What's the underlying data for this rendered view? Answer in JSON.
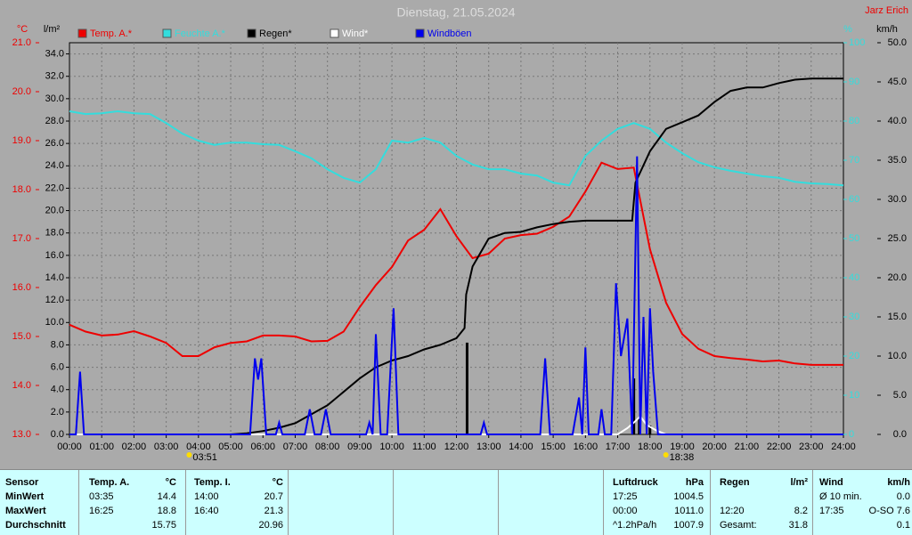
{
  "chart_data": {
    "type": "line",
    "title": "Dienstag, 21.05.2024",
    "author": "Jarz Erich",
    "xlim": [
      0,
      24
    ],
    "xticks": [
      {
        "value": 0,
        "label": "00:00"
      },
      {
        "value": 1,
        "label": "01:00"
      },
      {
        "value": 2,
        "label": "02:00"
      },
      {
        "value": 3,
        "label": "03:00"
      },
      {
        "value": 4,
        "label": "04:00"
      },
      {
        "value": 5,
        "label": "05:00"
      },
      {
        "value": 6,
        "label": "06:00"
      },
      {
        "value": 7,
        "label": "07:00"
      },
      {
        "value": 8,
        "label": "08:00"
      },
      {
        "value": 9,
        "label": "09:00"
      },
      {
        "value": 10,
        "label": "10:00"
      },
      {
        "value": 11,
        "label": "11:00"
      },
      {
        "value": 12,
        "label": "12:00"
      },
      {
        "value": 13,
        "label": "13:00"
      },
      {
        "value": 14,
        "label": "14:00"
      },
      {
        "value": 15,
        "label": "15:00"
      },
      {
        "value": 16,
        "label": "16:00"
      },
      {
        "value": 17,
        "label": "17:00"
      },
      {
        "value": 18,
        "label": "18:00"
      },
      {
        "value": 19,
        "label": "19:00"
      },
      {
        "value": 20,
        "label": "20:00"
      },
      {
        "value": 21,
        "label": "21:00"
      },
      {
        "value": 22,
        "label": "22:00"
      },
      {
        "value": 23,
        "label": "23:00"
      },
      {
        "value": 24,
        "label": "24:00"
      }
    ],
    "grid": true,
    "y_axes": {
      "temp": {
        "unit": "°C",
        "color": "#ee0000",
        "lim": [
          13,
          21
        ],
        "ticks": [
          {
            "value": 13,
            "label": "13.0"
          },
          {
            "value": 14,
            "label": "14.0"
          },
          {
            "value": 15,
            "label": "15.0"
          },
          {
            "value": 16,
            "label": "16.0"
          },
          {
            "value": 17,
            "label": "17.0"
          },
          {
            "value": 18,
            "label": "18.0"
          },
          {
            "value": 19,
            "label": "19.0"
          },
          {
            "value": 20,
            "label": "20.0"
          },
          {
            "value": 21,
            "label": "21.0"
          }
        ]
      },
      "rain": {
        "unit": "l/m²",
        "color": "#000000",
        "lim": [
          0,
          35
        ],
        "ticks": [
          {
            "value": 0,
            "label": "0.0"
          },
          {
            "value": 2,
            "label": "2.0"
          },
          {
            "value": 4,
            "label": "4.0"
          },
          {
            "value": 6,
            "label": "6.0"
          },
          {
            "value": 8,
            "label": "8.0"
          },
          {
            "value": 10,
            "label": "10.0"
          },
          {
            "value": 12,
            "label": "12.0"
          },
          {
            "value": 14,
            "label": "14.0"
          },
          {
            "value": 16,
            "label": "16.0"
          },
          {
            "value": 18,
            "label": "18.0"
          },
          {
            "value": 20,
            "label": "20.0"
          },
          {
            "value": 22,
            "label": "22.0"
          },
          {
            "value": 24,
            "label": "24.0"
          },
          {
            "value": 26,
            "label": "26.0"
          },
          {
            "value": 28,
            "label": "28.0"
          },
          {
            "value": 30,
            "label": "30.0"
          },
          {
            "value": 32,
            "label": "32.0"
          },
          {
            "value": 34,
            "label": "34.0"
          }
        ]
      },
      "humidity": {
        "unit": "%",
        "color": "#33dddd",
        "lim": [
          0,
          100
        ],
        "ticks": [
          0,
          10,
          20,
          30,
          40,
          50,
          60,
          70,
          80,
          90,
          100
        ]
      },
      "wind": {
        "unit": "km/h",
        "color": "#000000",
        "lim": [
          0,
          50
        ],
        "ticks": [
          {
            "value": 0,
            "label": "0.0"
          },
          {
            "value": 5,
            "label": "5.0"
          },
          {
            "value": 10,
            "label": "10.0"
          },
          {
            "value": 15,
            "label": "15.0"
          },
          {
            "value": 20,
            "label": "20.0"
          },
          {
            "value": 25,
            "label": "25.0"
          },
          {
            "value": 30,
            "label": "30.0"
          },
          {
            "value": 35,
            "label": "35.0"
          },
          {
            "value": 40,
            "label": "40.0"
          },
          {
            "value": 45,
            "label": "45.0"
          },
          {
            "value": 50,
            "label": "50.0"
          }
        ]
      }
    },
    "series": [
      {
        "name": "Temp. A.*",
        "color": "#ee0000",
        "axis": "temp",
        "x": [
          0,
          0.5,
          1,
          1.5,
          2,
          2.5,
          3,
          3.5,
          4,
          4.5,
          5,
          5.5,
          6,
          6.5,
          7,
          7.5,
          8,
          8.5,
          9,
          9.5,
          10,
          10.5,
          11,
          11.5,
          12,
          12.5,
          13,
          13.5,
          14,
          14.5,
          15,
          15.5,
          16,
          16.5,
          17,
          17.5,
          18,
          18.5,
          19,
          19.5,
          20,
          20.5,
          21,
          21.5,
          22,
          22.5,
          23,
          23.5,
          24
        ],
        "values": [
          15.24,
          15.1,
          15.02,
          15.04,
          15.11,
          15.0,
          14.87,
          14.6,
          14.6,
          14.78,
          14.87,
          14.9,
          15.02,
          15.02,
          15.0,
          14.9,
          14.91,
          15.1,
          15.6,
          16.05,
          16.42,
          16.96,
          17.18,
          17.6,
          17.05,
          16.6,
          16.69,
          17.0,
          17.07,
          17.1,
          17.24,
          17.45,
          17.96,
          18.55,
          18.42,
          18.45,
          16.78,
          15.69,
          15.05,
          14.75,
          14.6,
          14.56,
          14.53,
          14.49,
          14.51,
          14.45,
          14.42,
          14.42,
          14.42
        ]
      },
      {
        "name": "Feuchte A.*",
        "color": "#33dddd",
        "axis": "humidity",
        "x": [
          0,
          0.5,
          1,
          1.5,
          2,
          2.5,
          3,
          3.5,
          4,
          4.5,
          5,
          5.5,
          6,
          6.5,
          7,
          7.5,
          8,
          8.5,
          9,
          9.5,
          10,
          10.5,
          11,
          11.5,
          12,
          12.5,
          13,
          13.5,
          14,
          14.5,
          15,
          15.5,
          16,
          16.5,
          17,
          17.5,
          18,
          18.5,
          19,
          19.5,
          20,
          20.5,
          21,
          21.5,
          22,
          22.5,
          23,
          23.5,
          24
        ],
        "values": [
          82.5,
          81.8,
          82,
          82.5,
          82,
          81.8,
          79.5,
          76.8,
          75,
          73.9,
          74.5,
          74.5,
          74.1,
          73.9,
          72.3,
          70.5,
          67.7,
          65.5,
          64.3,
          67.7,
          75,
          74.5,
          75.7,
          74.5,
          71.1,
          68.9,
          67.7,
          67.7,
          66.6,
          66.1,
          64.3,
          63.6,
          71.1,
          75,
          78,
          79.5,
          78,
          74.5,
          71.8,
          69.5,
          68.2,
          67.3,
          66.6,
          65.9,
          65.5,
          64.5,
          64.1,
          63.9,
          63.6
        ]
      },
      {
        "name": "Regen*",
        "color": "#000000",
        "axis": "rain",
        "x": [
          0,
          5,
          5.5,
          6,
          6.5,
          7,
          7.5,
          8,
          8.5,
          9,
          9.5,
          10,
          10.5,
          11,
          11.5,
          12,
          12.25,
          12.3,
          12.5,
          13,
          13.5,
          14,
          14.5,
          15,
          15.5,
          16,
          17,
          17.45,
          17.55,
          18,
          18.5,
          19,
          19.5,
          20,
          20.5,
          21,
          21.5,
          22,
          22.5,
          23,
          24
        ],
        "values": [
          0,
          0,
          0.1,
          0.3,
          0.6,
          1.0,
          1.8,
          2.6,
          3.8,
          5.0,
          6.0,
          6.6,
          7.0,
          7.6,
          8.0,
          8.6,
          9.5,
          12.5,
          15.0,
          17.5,
          18.0,
          18.1,
          18.5,
          18.8,
          19.0,
          19.1,
          19.1,
          19.1,
          22.5,
          25.3,
          27.3,
          27.9,
          28.5,
          29.7,
          30.7,
          31.0,
          31.0,
          31.4,
          31.7,
          31.8,
          31.8
        ],
        "bars": {
          "x": [
            12.33,
            17.5,
            17.67,
            18.0
          ],
          "values": [
            8.2,
            5.0,
            1.5,
            0.8
          ]
        }
      },
      {
        "name": "Wind*",
        "color": "#ffffff",
        "axis": "wind",
        "x": [
          0,
          17,
          17.3,
          17.5,
          17.7,
          17.9,
          18.2,
          18.5,
          24
        ],
        "values": [
          0,
          0,
          0.8,
          1.5,
          2.3,
          1.2,
          0.5,
          0,
          0
        ]
      },
      {
        "name": "Windböen",
        "color": "#0000ee",
        "axis": "wind",
        "x": [
          0,
          0.2,
          0.33,
          0.45,
          5.6,
          5.75,
          5.85,
          5.95,
          6.1,
          6.4,
          6.5,
          6.6,
          7.3,
          7.45,
          7.6,
          7.8,
          7.95,
          8.1,
          9.2,
          9.3,
          9.4,
          9.5,
          9.65,
          9.85,
          10.05,
          10.2,
          12.75,
          12.85,
          12.95,
          14.6,
          14.75,
          14.9,
          15.6,
          15.8,
          15.9,
          16.0,
          16.1,
          16.4,
          16.5,
          16.6,
          16.8,
          16.95,
          17.1,
          17.3,
          17.45,
          17.6,
          17.7,
          17.8,
          17.9,
          18.0,
          18.1,
          18.25,
          24
        ],
        "values": [
          0,
          0,
          8,
          0,
          0,
          9.7,
          7,
          9.7,
          0,
          0,
          1.5,
          0,
          0,
          3.2,
          0,
          0,
          3.2,
          0,
          0,
          1.5,
          0,
          12.8,
          0,
          0,
          16.1,
          0,
          0,
          1.5,
          0,
          0,
          9.7,
          0,
          0,
          4.7,
          0,
          11.1,
          0,
          0,
          3.2,
          0,
          0,
          19.3,
          10,
          14.8,
          0,
          35.5,
          0,
          15.0,
          0,
          16.1,
          8,
          0,
          0
        ]
      }
    ],
    "sun_events": [
      {
        "x": 3.85,
        "label": "03:51"
      },
      {
        "x": 18.633,
        "label": "18:38"
      }
    ]
  },
  "table": {
    "header": [
      "Sensor",
      "Temp. A.",
      "°C",
      "Temp. I.",
      "°C",
      "Luftdruck",
      "hPa",
      "Regen",
      "l/m²",
      "Wind",
      "km/h"
    ],
    "rows": [
      [
        "MinWert",
        "03:35",
        "14.4",
        "14:00",
        "20.7",
        "17:25",
        "1004.5",
        null,
        null,
        "Ø 10 min.",
        "0.0"
      ],
      [
        "MaxWert",
        "16:25",
        "18.8",
        "16:40",
        "21.3",
        "00:00",
        "1011.0",
        "12:20",
        "8.2",
        "17:35",
        "O-SO 7.6"
      ],
      [
        "Durchschnitt",
        null,
        "15.75",
        null,
        "20.96",
        "^1.2hPa/h",
        "1007.9",
        "Gesamt:",
        "31.8",
        null,
        "0.1"
      ]
    ]
  }
}
